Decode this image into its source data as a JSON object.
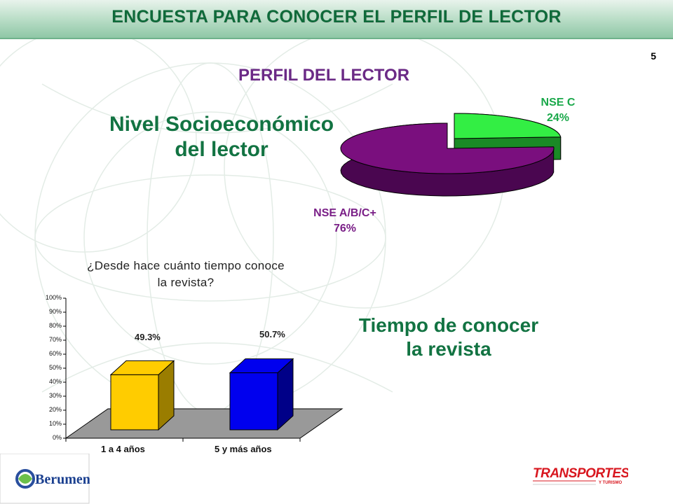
{
  "header": {
    "title": "ENCUESTA PARA CONOCER EL PERFIL DE LECTOR"
  },
  "page_number": "5",
  "section_title": "PERFIL DEL LECTOR",
  "nse_heading": {
    "line1": "Nivel Socioeconómico",
    "line2": "del lector"
  },
  "tiempo_heading": {
    "line1": "Tiempo de conocer",
    "line2": "la revista"
  },
  "pie": {
    "slices": [
      {
        "label": "NSE C",
        "pct": "24%",
        "value": 24,
        "color": "#33ee44",
        "side_color": "#1a8a26"
      },
      {
        "label": "NSE A/B/C+",
        "pct": "76%",
        "value": 76,
        "color": "#7a0f7e",
        "side_color": "#4a0650"
      }
    ]
  },
  "bar_chart": {
    "title_line1": "¿Desde hace cuánto tiempo conoce",
    "title_line2": "la revista?",
    "categories": [
      "1 a 4 años",
      "5 y más años"
    ],
    "value_labels": [
      "49.3%",
      "50.7%"
    ],
    "ticks": [
      "0%",
      "10%",
      "20%",
      "30%",
      "40%",
      "50%",
      "60%",
      "70%",
      "80%",
      "90%",
      "100%"
    ],
    "colors": [
      "#ffcc00",
      "#0000ee"
    ]
  },
  "chart_data": [
    {
      "type": "pie",
      "title": "",
      "categories": [
        "NSE C",
        "NSE A/B/C+"
      ],
      "values": [
        24,
        76
      ]
    },
    {
      "type": "bar",
      "title": "¿Desde hace cuánto tiempo conoce la revista?",
      "categories": [
        "1 a 4 años",
        "5 y más años"
      ],
      "values": [
        49.3,
        50.7
      ],
      "xlabel": "",
      "ylabel": "",
      "ylim": [
        0,
        100
      ],
      "grid": false,
      "legend": "none"
    }
  ],
  "logos": {
    "left": "Berumen",
    "right": "TRANSPORTES",
    "right_sub": "Y TURISMO"
  }
}
